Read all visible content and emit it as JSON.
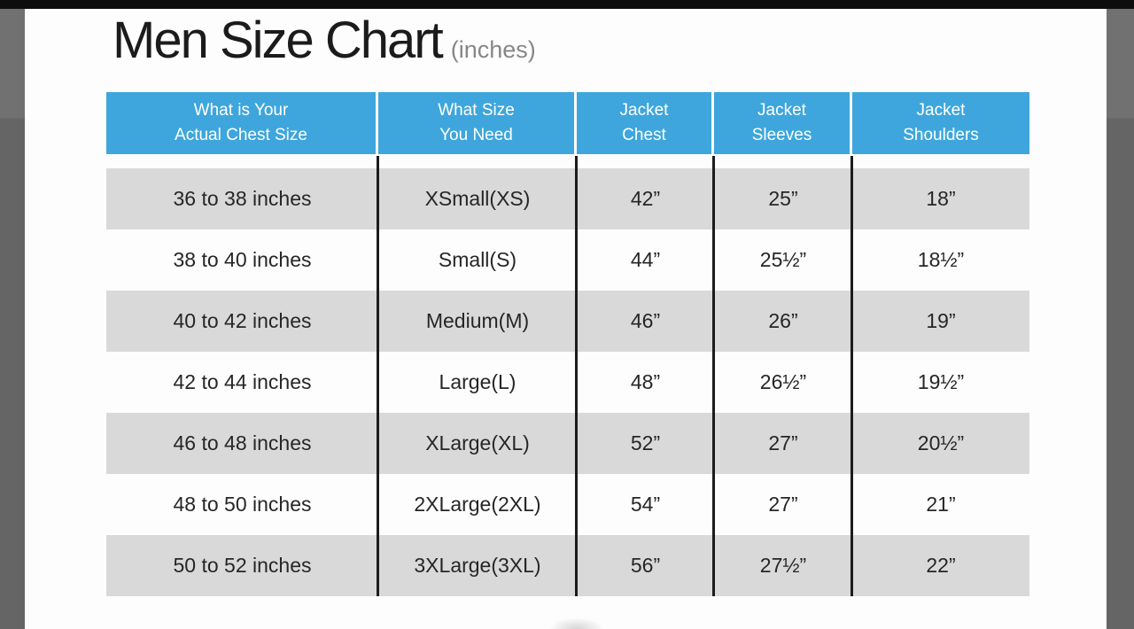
{
  "page": {
    "title": "Men Size Chart",
    "title_suffix": "(inches)"
  },
  "colors": {
    "header_bg": "#3ea6dc",
    "header_text": "#ffffff",
    "row_alt_bg": "#d9d9d9",
    "row_bg": "#fdfdfd",
    "column_divider": "#1c1c1c",
    "top_letterbox_bar": "#0d0d0d",
    "side_letterbox_bar": "#6a6a6a",
    "title_suffix_color": "#878787"
  },
  "table": {
    "headers": [
      {
        "lines": [
          "What is Your",
          "Actual Chest Size"
        ]
      },
      {
        "lines": [
          "What Size",
          "You Need"
        ]
      },
      {
        "lines": [
          "Jacket",
          "Chest"
        ]
      },
      {
        "lines": [
          "Jacket",
          "Sleeves"
        ]
      },
      {
        "lines": [
          "Jacket",
          "Shoulders"
        ]
      }
    ],
    "rows": [
      [
        "36 to 38 inches",
        "XSmall(XS)",
        "42”",
        "25”",
        "18”"
      ],
      [
        "38 to 40 inches",
        "Small(S)",
        "44”",
        "25½”",
        "18½”"
      ],
      [
        "40 to 42 inches",
        "Medium(M)",
        "46”",
        "26”",
        "19”"
      ],
      [
        "42 to 44 inches",
        "Large(L)",
        "48”",
        "26½”",
        "19½”"
      ],
      [
        "46 to 48 inches",
        "XLarge(XL)",
        "52”",
        "27”",
        "20½”"
      ],
      [
        "48 to 50 inches",
        "2XLarge(2XL)",
        "54”",
        "27”",
        "21”"
      ],
      [
        "50 to 52 inches",
        "3XLarge(3XL)",
        "56”",
        "27½”",
        "22”"
      ]
    ]
  }
}
